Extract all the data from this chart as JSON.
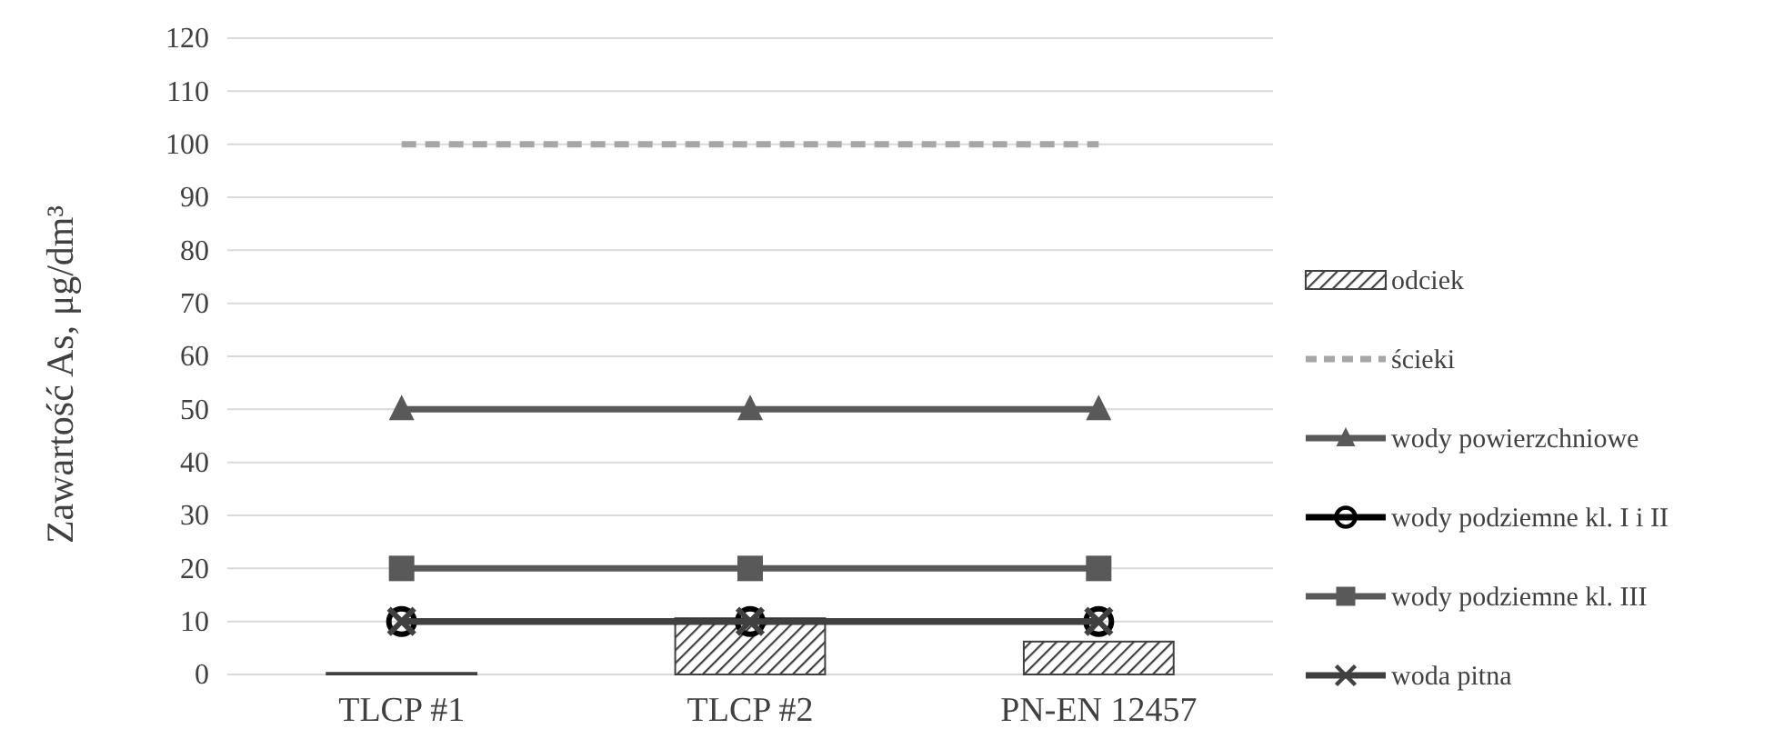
{
  "chart_data": {
    "type": "line",
    "ylabel": "Zawartość As, μg/dm³",
    "categories": [
      "TLCP #1",
      "TLCP #2",
      "PN-EN 12457"
    ],
    "ylim": [
      0,
      120
    ],
    "yticks": [
      0,
      10,
      20,
      30,
      40,
      50,
      60,
      70,
      80,
      90,
      100,
      110,
      120
    ],
    "grid": "y",
    "legend": "right",
    "series": [
      {
        "name": "odciek",
        "type": "bar",
        "color": "#404040",
        "values": [
          0.3,
          10.6,
          6.2
        ]
      },
      {
        "name": "ścieki",
        "color": "#a6a6a6",
        "line_style": "dashed",
        "marker": "none",
        "values": [
          100,
          100,
          100
        ]
      },
      {
        "name": "wody powierzchniowe",
        "color": "#595959",
        "marker": "triangle",
        "values": [
          50,
          50,
          50
        ]
      },
      {
        "name": "wody podziemne kl. I i II",
        "color": "#000000",
        "marker": "circle",
        "values": [
          10,
          10,
          10
        ]
      },
      {
        "name": "wody podziemne kl. III",
        "color": "#595959",
        "marker": "square",
        "values": [
          20,
          20,
          20
        ]
      },
      {
        "name": "woda pitna",
        "color": "#404040",
        "marker": "cross",
        "values": [
          10,
          10,
          10
        ]
      }
    ]
  }
}
